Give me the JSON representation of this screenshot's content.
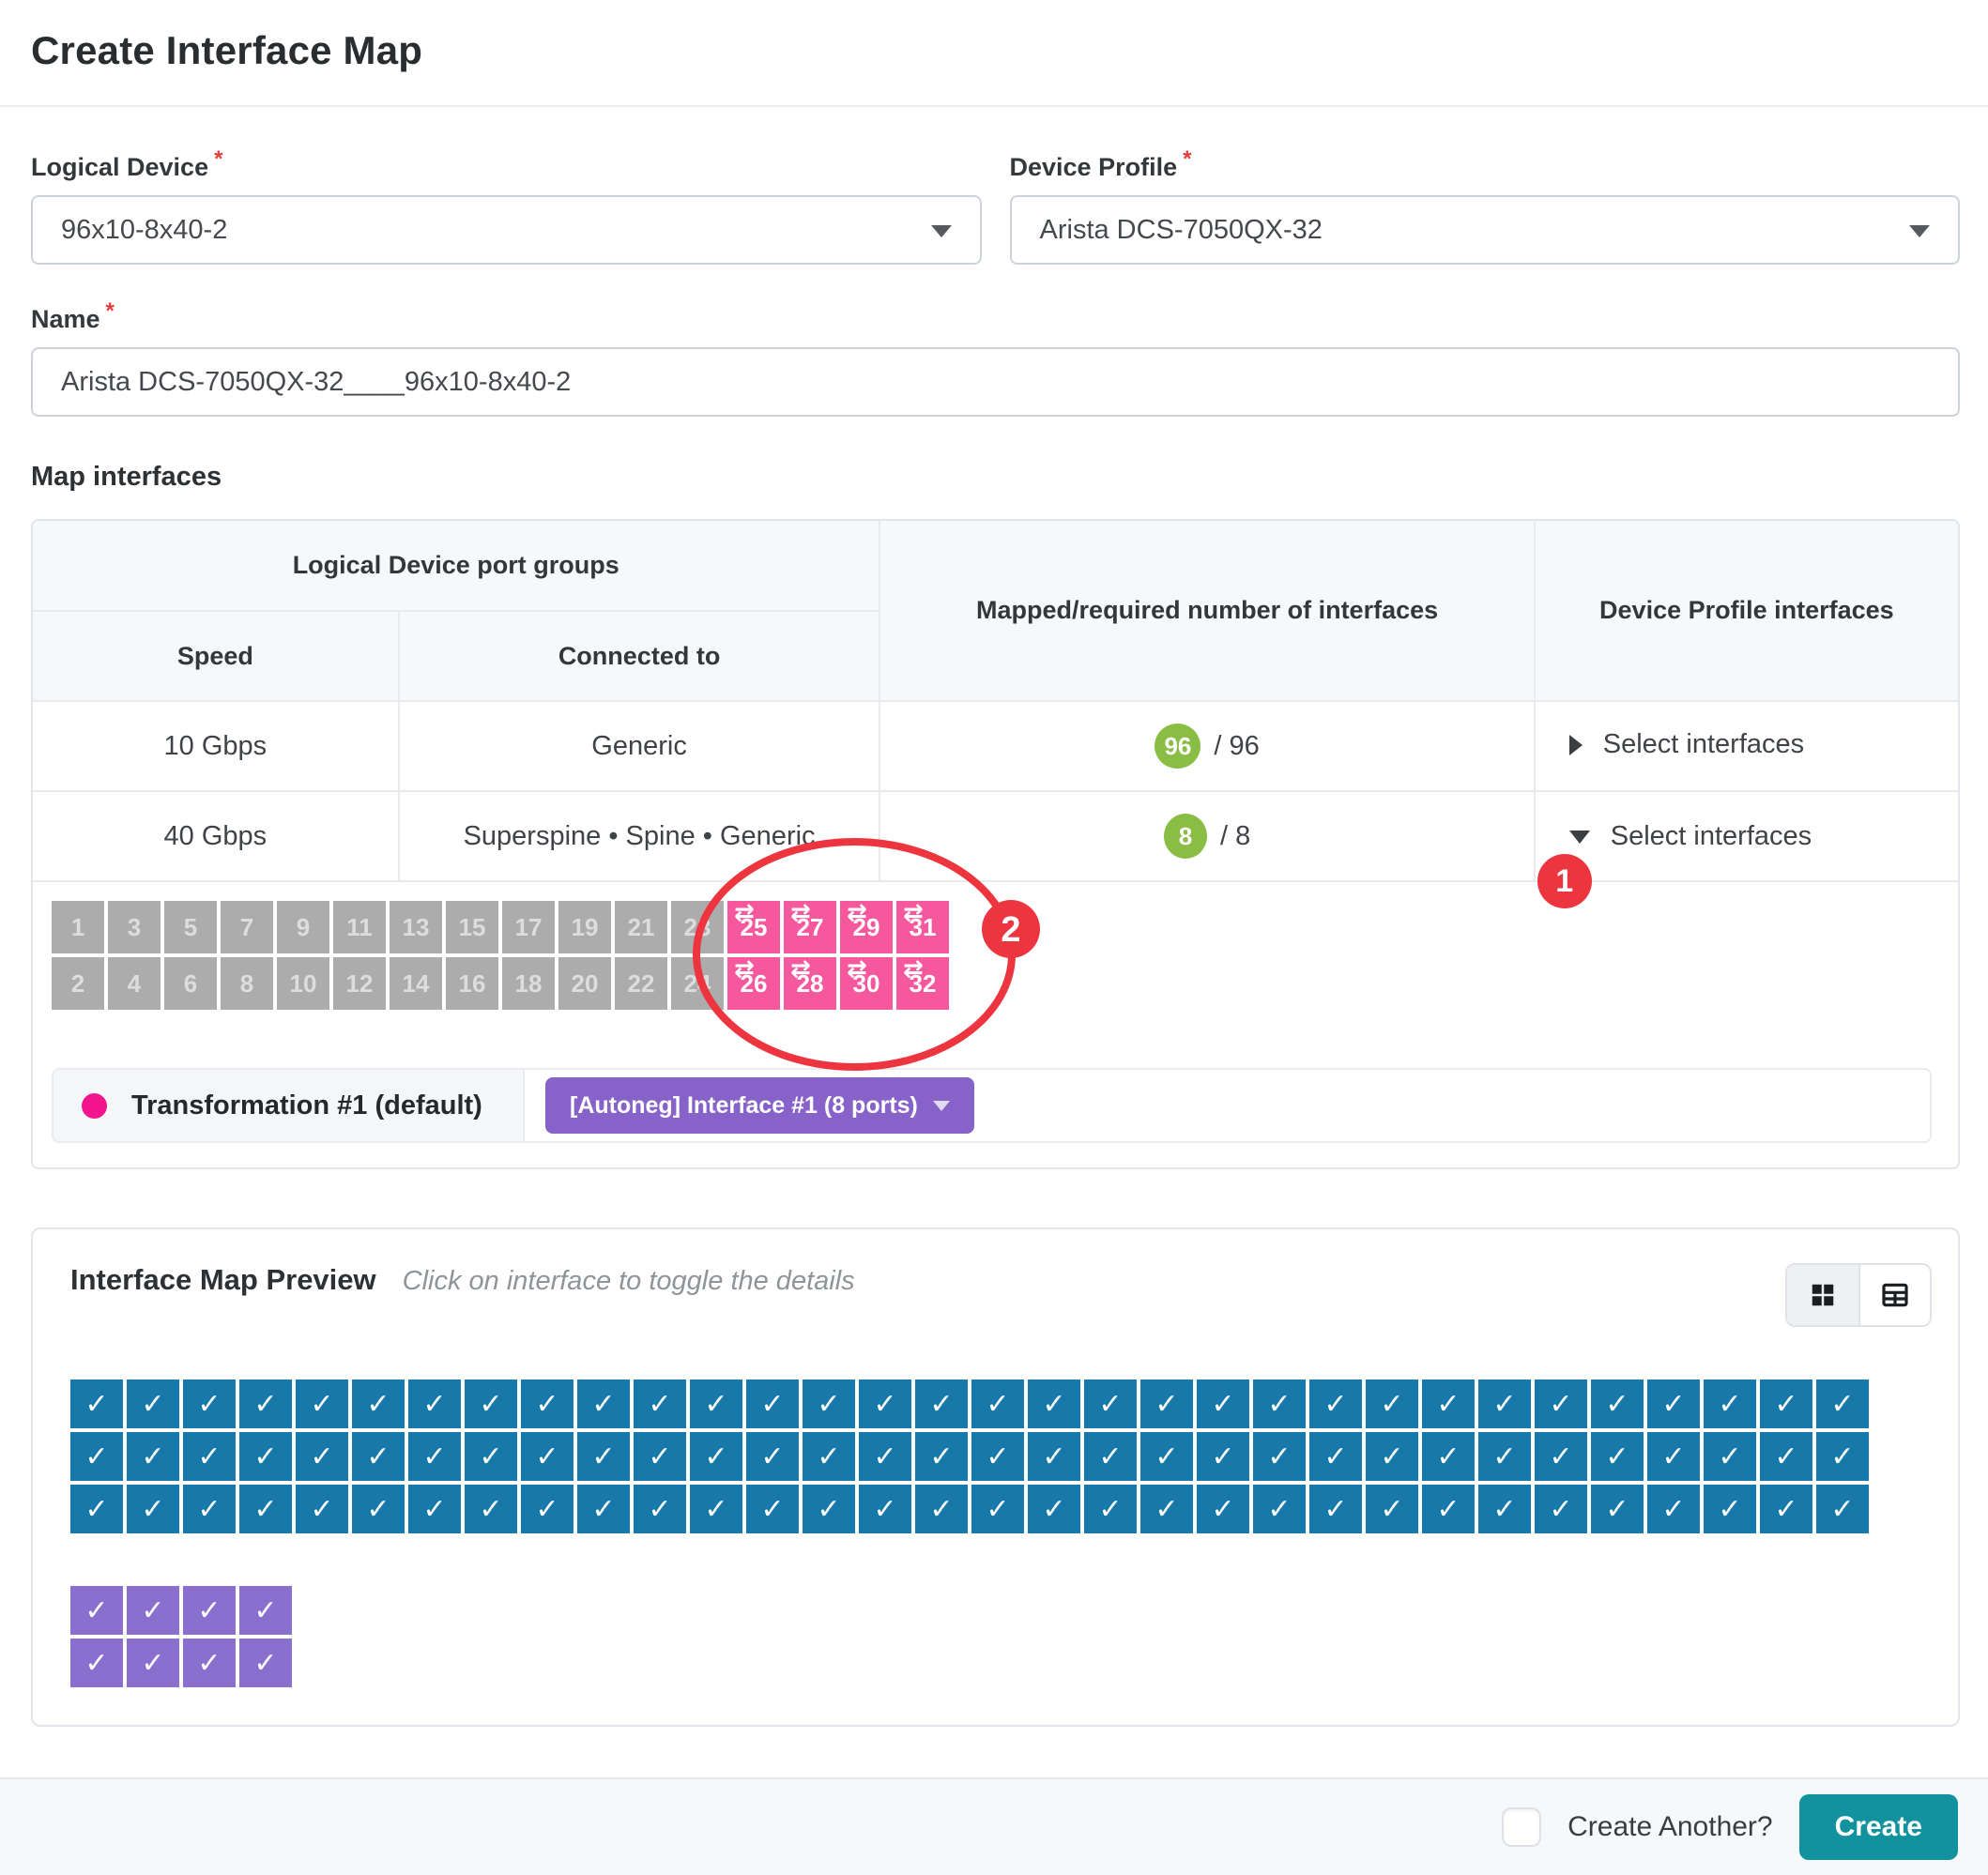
{
  "page_title": "Create Interface Map",
  "form": {
    "logical_device": {
      "label": "Logical Device",
      "required_mark": "*",
      "value": "96x10-8x40-2"
    },
    "device_profile": {
      "label": "Device Profile",
      "required_mark": "*",
      "value": "Arista DCS-7050QX-32"
    },
    "name": {
      "label": "Name",
      "required_mark": "*",
      "value": "Arista DCS-7050QX-32____96x10-8x40-2"
    }
  },
  "map_interfaces": {
    "section_title": "Map interfaces",
    "headers": {
      "port_groups": "Logical Device port groups",
      "speed": "Speed",
      "connected_to": "Connected to",
      "mapped": "Mapped/required number of interfaces",
      "device_profile_interfaces": "Device Profile interfaces"
    },
    "rows": [
      {
        "speed": "10 Gbps",
        "connected_to": "Generic",
        "mapped_count": "96",
        "required_text": "/ 96",
        "select_label": "Select interfaces",
        "state": "collapsed"
      },
      {
        "speed": "40 Gbps",
        "connected_to": "Superspine • Spine • Generic",
        "mapped_count": "8",
        "required_text": "/ 8",
        "select_label": "Select interfaces",
        "state": "expanded"
      }
    ],
    "port_grid": {
      "top_row": [
        1,
        3,
        5,
        7,
        9,
        11,
        13,
        15,
        17,
        19,
        21,
        23,
        25,
        27,
        29,
        31
      ],
      "bottom_row": [
        2,
        4,
        6,
        8,
        10,
        12,
        14,
        16,
        18,
        20,
        22,
        24,
        26,
        28,
        30,
        32
      ],
      "selected_ports": [
        25,
        26,
        27,
        28,
        29,
        30,
        31,
        32
      ],
      "transform_icon": "⇄",
      "colors": {
        "unselected": "#acacac",
        "selected": "#f6589d"
      }
    },
    "legend": {
      "dot_color": "#f2148c",
      "transformation_label": "Transformation #1 (default)",
      "interface_button_label": "[Autoneg] Interface #1 (8 ports)",
      "button_color": "#8763c9"
    },
    "annotations": {
      "step1_badge": "1",
      "step2_badge": "2",
      "color": "#ed3540"
    }
  },
  "preview": {
    "title": "Interface Map Preview",
    "hint": "Click on interface to toggle the details",
    "check_glyph": "✓",
    "grids": [
      {
        "name": "10g-interfaces",
        "rows": 3,
        "cols": 32,
        "color": "#1779a9"
      },
      {
        "name": "40g-interfaces",
        "rows": 2,
        "cols": 4,
        "color": "#8a6fce"
      }
    ]
  },
  "footer": {
    "create_another_label": "Create Another?",
    "create_label": "Create"
  },
  "colors": {
    "badge_green": "#8abd44",
    "annotation_red": "#ed3540",
    "create_teal": "#12929e",
    "port_gray": "#acacac",
    "port_pink": "#f6589d",
    "preview_blue": "#1779a9",
    "preview_purple": "#8a6fce"
  }
}
